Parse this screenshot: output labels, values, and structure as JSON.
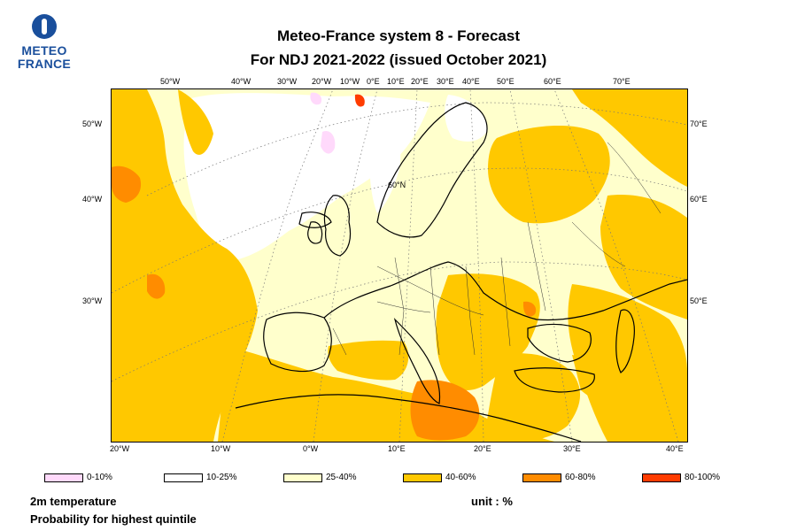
{
  "logo": {
    "line1": "METEO",
    "line2": "FRANCE"
  },
  "title": {
    "line1": "Meteo-France system 8  -  Forecast",
    "line2": "For NDJ 2021-2022      (issued October 2021)"
  },
  "map": {
    "top_labels": [
      "50°W",
      "40°W",
      "30°W",
      "20°W",
      "10°W",
      "0°E",
      "10°E",
      "20°E",
      "30°E",
      "40°E",
      "50°E",
      "60°E",
      "70°E"
    ],
    "bottom_labels": [
      "20°W",
      "10°W",
      "0°W",
      "10°E",
      "20°E",
      "30°E",
      "40°E"
    ],
    "left_labels": [
      "50°W",
      "40°W",
      "30°W"
    ],
    "right_labels": [
      "70°E",
      "60°E",
      "50°E"
    ],
    "inner_label": "60°N",
    "colors": {
      "c0_10": "#ffd9fb",
      "c10_25": "#ffffff",
      "c25_40": "#ffffcc",
      "c40_60": "#ffc800",
      "c60_80": "#ff8c00",
      "c80_100": "#ff3c00"
    }
  },
  "legend": [
    {
      "label": "0-10%",
      "color": "#ffd9fb"
    },
    {
      "label": "10-25%",
      "color": "#ffffff"
    },
    {
      "label": "25-40%",
      "color": "#ffffcc"
    },
    {
      "label": "40-60%",
      "color": "#ffc800"
    },
    {
      "label": "60-80%",
      "color": "#ff8c00"
    },
    {
      "label": "80-100%",
      "color": "#ff3c00"
    }
  ],
  "footer": {
    "variable": "2m temperature",
    "description": "Probability for highest quintile",
    "unit": "unit : %"
  }
}
